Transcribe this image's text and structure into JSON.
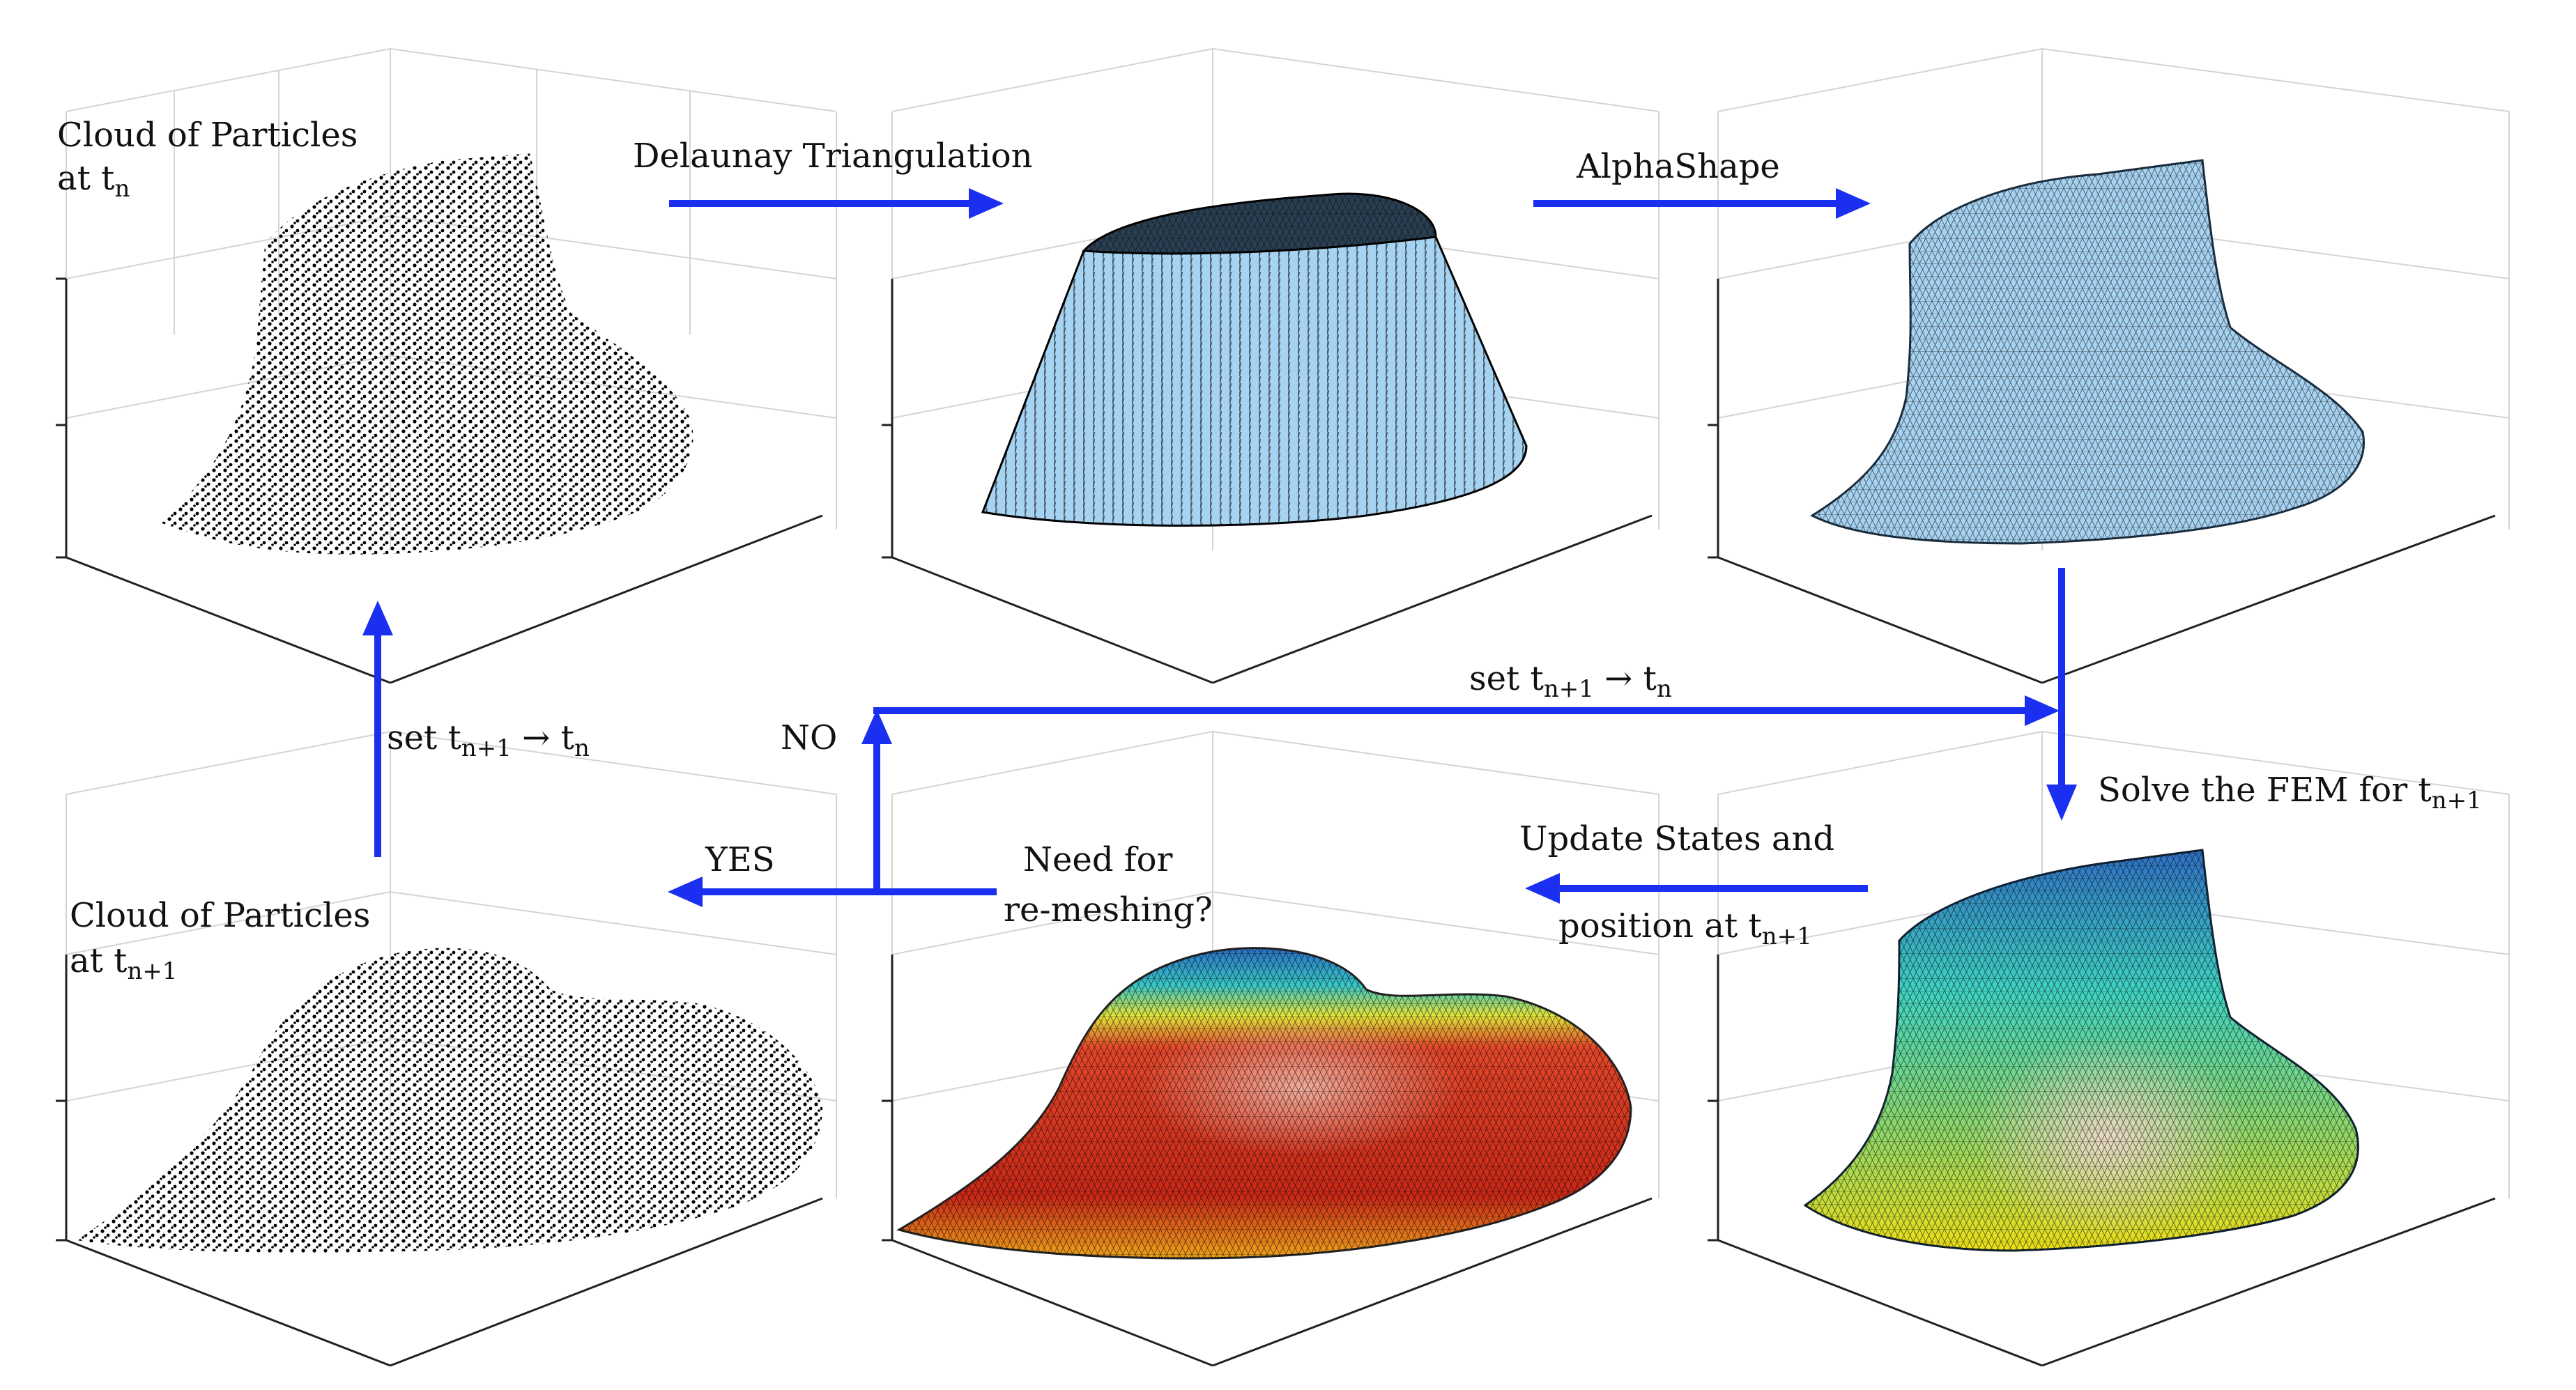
{
  "labels": {
    "cloud_tn_line1": "Cloud of Particles",
    "cloud_tn_line2": "at t",
    "cloud_tn_sub": "n",
    "delaunay": "Delaunay Triangulation",
    "alphashape": "AlphaShape",
    "set_top_prefix": "set t",
    "set_top_sub1": "n+1",
    "set_top_arrow": " → t",
    "set_top_sub2": "n",
    "set_left_prefix": "set t",
    "set_left_sub1": "n+1",
    "set_left_arrow": " → t",
    "set_left_sub2": "n",
    "no": "NO",
    "yes": "YES",
    "solve_prefix": "Solve the FEM  for t",
    "solve_sub": "n+1",
    "update_line1": "Update States and",
    "update_line2_prefix": "position at t",
    "update_line2_sub": "n+1",
    "need_line1": "Need for",
    "need_line2": "re-meshing?",
    "cloud_tn1_line1": "Cloud of Particles",
    "cloud_tn1_line2": "at t",
    "cloud_tn1_sub": "n+1"
  },
  "colors": {
    "arrow": "#1a2ff0",
    "mesh_fill": "#a7d3f2",
    "fem_top": "#2f7fc9",
    "fem_mid": "#3fd0c0",
    "fem_bottom": "#e9e21a",
    "remesh_red": "#d7301f",
    "remesh_orange": "#f08a1b"
  },
  "icons": [
    "particle-cloud",
    "delaunay-mesh",
    "alphashape-mesh",
    "fem-solution-mesh",
    "remesh-solution-mesh",
    "updated-particle-cloud"
  ]
}
